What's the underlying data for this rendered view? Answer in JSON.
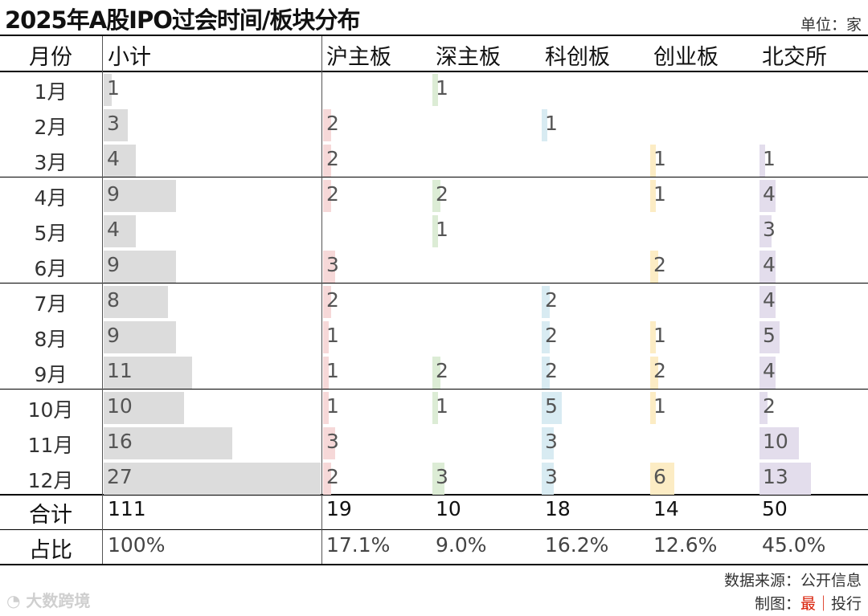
{
  "header": {
    "title": "2025年A股IPO过会时间/板块分布",
    "unit": "单位：家"
  },
  "columns": {
    "month": "月份",
    "total": "小计",
    "sh": "沪主板",
    "sz": "深主板",
    "star": "科创板",
    "gem": "创业板",
    "bse": "北交所"
  },
  "colors": {
    "total": "#dcdcdc",
    "sh": "#f6d8d8",
    "sz": "#dcecd5",
    "star": "#d8ebf2",
    "gem": "#fcecc4",
    "bse": "#e3ddec"
  },
  "chart_data": {
    "type": "table",
    "title": "2025年A股IPO过会时间/板块分布",
    "unit": "单位：家",
    "columns": [
      "月份",
      "小计",
      "沪主板",
      "深主板",
      "科创板",
      "创业板",
      "北交所"
    ],
    "rows": [
      {
        "month": "1月",
        "total": 1,
        "sh": null,
        "sz": 1,
        "star": null,
        "gem": null,
        "bse": null
      },
      {
        "month": "2月",
        "total": 3,
        "sh": 2,
        "sz": null,
        "star": 1,
        "gem": null,
        "bse": null
      },
      {
        "month": "3月",
        "total": 4,
        "sh": 2,
        "sz": null,
        "star": null,
        "gem": 1,
        "bse": 1
      },
      {
        "month": "4月",
        "total": 9,
        "sh": 2,
        "sz": 2,
        "star": null,
        "gem": 1,
        "bse": 4
      },
      {
        "month": "5月",
        "total": 4,
        "sh": null,
        "sz": 1,
        "star": null,
        "gem": null,
        "bse": 3
      },
      {
        "month": "6月",
        "total": 9,
        "sh": 3,
        "sz": null,
        "star": null,
        "gem": 2,
        "bse": 4
      },
      {
        "month": "7月",
        "total": 8,
        "sh": 2,
        "sz": null,
        "star": 2,
        "gem": null,
        "bse": 4
      },
      {
        "month": "8月",
        "total": 9,
        "sh": 1,
        "sz": null,
        "star": 2,
        "gem": 1,
        "bse": 5
      },
      {
        "month": "9月",
        "total": 11,
        "sh": 1,
        "sz": 2,
        "star": 2,
        "gem": 2,
        "bse": 4
      },
      {
        "month": "10月",
        "total": 10,
        "sh": 1,
        "sz": 1,
        "star": 5,
        "gem": 1,
        "bse": 2
      },
      {
        "month": "11月",
        "total": 16,
        "sh": 3,
        "sz": null,
        "star": 3,
        "gem": null,
        "bse": 10
      },
      {
        "month": "12月",
        "total": 27,
        "sh": 2,
        "sz": 3,
        "star": 3,
        "gem": 6,
        "bse": 13
      }
    ],
    "totals": {
      "label": "合计",
      "total": "111",
      "sh": "19",
      "sz": "10",
      "star": "18",
      "gem": "14",
      "bse": "50"
    },
    "shares": {
      "label": "占比",
      "total": "100%",
      "sh": "17.1%",
      "sz": "9.0%",
      "star": "16.2%",
      "gem": "12.6%",
      "bse": "45.0%"
    }
  },
  "footer": {
    "source": "数据来源：公开信息",
    "made_by_prefix": "制图：",
    "made_by_accent": "最",
    "made_by_sep": "｜",
    "made_by_suffix": "投行",
    "watermark": "大数跨境"
  }
}
